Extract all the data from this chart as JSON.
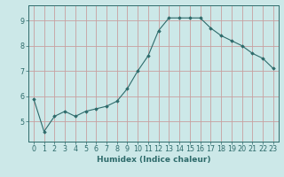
{
  "x": [
    0,
    1,
    2,
    3,
    4,
    5,
    6,
    7,
    8,
    9,
    10,
    11,
    12,
    13,
    14,
    15,
    16,
    17,
    18,
    19,
    20,
    21,
    22,
    23
  ],
  "y": [
    5.9,
    4.6,
    5.2,
    5.4,
    5.2,
    5.4,
    5.5,
    5.6,
    5.8,
    6.3,
    7.0,
    7.6,
    8.6,
    9.1,
    9.1,
    9.1,
    9.1,
    8.7,
    8.4,
    8.2,
    8.0,
    7.7,
    7.5,
    7.1
  ],
  "xlabel": "Humidex (Indice chaleur)",
  "xlim": [
    -0.5,
    23.5
  ],
  "ylim": [
    4.2,
    9.6
  ],
  "yticks": [
    5,
    6,
    7,
    8,
    9
  ],
  "xticks": [
    0,
    1,
    2,
    3,
    4,
    5,
    6,
    7,
    8,
    9,
    10,
    11,
    12,
    13,
    14,
    15,
    16,
    17,
    18,
    19,
    20,
    21,
    22,
    23
  ],
  "line_color": "#2e6b6b",
  "marker": "D",
  "marker_size": 1.8,
  "bg_color": "#cce8e8",
  "grid_color_h": "#c8a0a0",
  "grid_color_v": "#c8a0a0",
  "axis_color": "#2e6b6b",
  "tick_color": "#2e6b6b",
  "xlabel_color": "#2e6b6b",
  "label_fontsize": 6.5,
  "tick_fontsize": 5.8
}
